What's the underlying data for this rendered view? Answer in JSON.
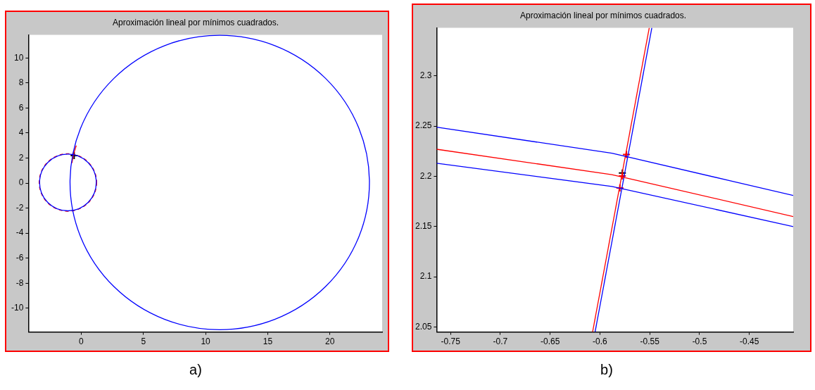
{
  "chart_data": [
    {
      "type": "line",
      "title": "Aproximación lineal por mínimos cuadrados.",
      "xlim": [
        -4.25,
        24.2
      ],
      "ylim": [
        -11.9,
        11.85
      ],
      "xticks": [
        0,
        5,
        10,
        15,
        20
      ],
      "yticks": [
        -10,
        -8,
        -6,
        -4,
        -2,
        0,
        2,
        4,
        6,
        8,
        10
      ],
      "annotations": [
        "a)"
      ],
      "marker": "none",
      "series": [
        {
          "color": "#ff0000",
          "x": [
            -0.75,
            -0.62,
            -0.4
          ],
          "values": [
            1.6,
            2.3,
            3.0
          ]
        },
        {
          "type": "scatter",
          "marker": "cross",
          "color": "#000000",
          "x": [
            -0.57
          ],
          "values": [
            2.2
          ]
        }
      ]
    },
    {
      "type": "line",
      "title": "Aproximación lineal por mínimos cuadrados.",
      "xlim": [
        -0.764,
        -0.406
      ],
      "ylim": [
        2.045,
        2.348
      ],
      "xticks": [
        -0.75,
        -0.7,
        -0.65,
        -0.6,
        -0.55,
        -0.5,
        -0.45
      ],
      "yticks": [
        2.05,
        2.1,
        2.15,
        2.2,
        2.25,
        2.3
      ],
      "annotations": [
        "b)"
      ],
      "marker": "none",
      "series": [
        {
          "color": "#0000ff",
          "x": [
            -0.764,
            -0.588,
            -0.406
          ],
          "values": [
            2.249,
            2.223,
            2.181
          ]
        },
        {
          "color": "#ff0000",
          "x": [
            -0.764,
            -0.588,
            -0.406
          ],
          "values": [
            2.227,
            2.2017,
            2.16
          ]
        },
        {
          "color": "#0000ff",
          "x": [
            -0.764,
            -0.588,
            -0.406
          ],
          "values": [
            2.213,
            2.19,
            2.15
          ]
        },
        {
          "color": "#0000ff",
          "x": [
            -0.6049,
            -0.5479
          ],
          "values": [
            2.045,
            2.348
          ]
        },
        {
          "color": "#ff0000",
          "x": [
            -0.6074,
            -0.5505
          ],
          "values": [
            2.045,
            2.348
          ]
        },
        {
          "type": "scatter",
          "marker": "cross",
          "color": "#ff0000",
          "x": [
            -0.5734,
            -0.5775,
            -0.58
          ],
          "values": [
            2.2217,
            2.2003,
            2.1884
          ]
        },
        {
          "type": "scatter",
          "marker": "cross",
          "color": "#000000",
          "x": [
            -0.5775
          ],
          "values": [
            2.2034
          ]
        }
      ]
    }
  ]
}
